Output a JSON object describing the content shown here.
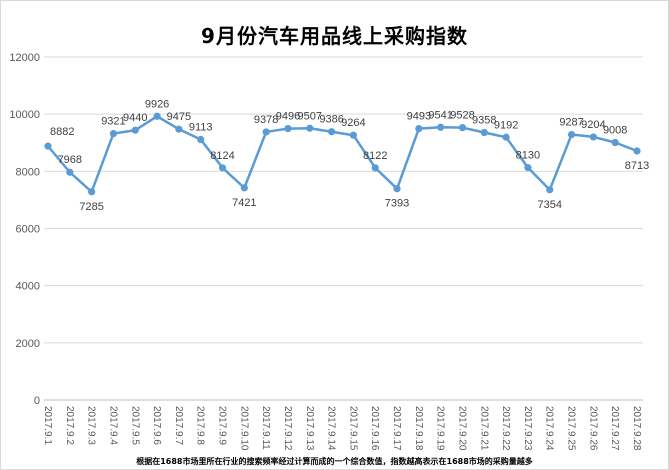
{
  "chart_data": {
    "type": "line",
    "title": "9月份汽车用品线上采购指数",
    "x": [
      "2017.9.1",
      "2017.9.2",
      "2017.9.3",
      "2017.9.4",
      "2017.9.5",
      "2017.9.6",
      "2017.9.7",
      "2017.9.8",
      "2017.9.9",
      "2017.9.10",
      "2017.9.11",
      "2017.9.12",
      "2017.9.13",
      "2017.9.14",
      "2017.9.15",
      "2017.9.16",
      "2017.9.17",
      "2017.9.18",
      "2017.9.19",
      "2017.9.20",
      "2017.9.21",
      "2017.9.22",
      "2017.9.23",
      "2017.9.24",
      "2017.9.25",
      "2017.9.26",
      "2017.9.27",
      "2017.9.28"
    ],
    "series": [
      {
        "values": [
          8882,
          7968,
          7285,
          9321,
          9440,
          9926,
          9475,
          9113,
          8124,
          7421,
          9378,
          9496,
          9507,
          9386,
          9264,
          8122,
          7393,
          9493,
          9541,
          9528,
          9358,
          9192,
          8130,
          7354,
          9287,
          9204,
          9008,
          8713
        ],
        "labeled": [
          true,
          true,
          true,
          true,
          true,
          true,
          true,
          true,
          true,
          true,
          true,
          true,
          true,
          true,
          true,
          true,
          true,
          true,
          true,
          true,
          true,
          true,
          true,
          true,
          true,
          true,
          true,
          true
        ]
      }
    ],
    "ylim": [
      0,
      12000
    ],
    "yticks": [
      0,
      2000,
      4000,
      6000,
      8000,
      10000,
      12000
    ],
    "xlabel": "",
    "ylabel": "",
    "grid": true,
    "legend": "none",
    "colors": {
      "line": "#5b9bd5",
      "marker": "#5b9bd5",
      "grid": "#d9d9d9",
      "axis": "#bfbfbf"
    }
  },
  "footnote": "根据在1688市场里所在行业的搜索频率经过计算而成的一个综合数值，指数越高表示在1688市场的采购量越多"
}
